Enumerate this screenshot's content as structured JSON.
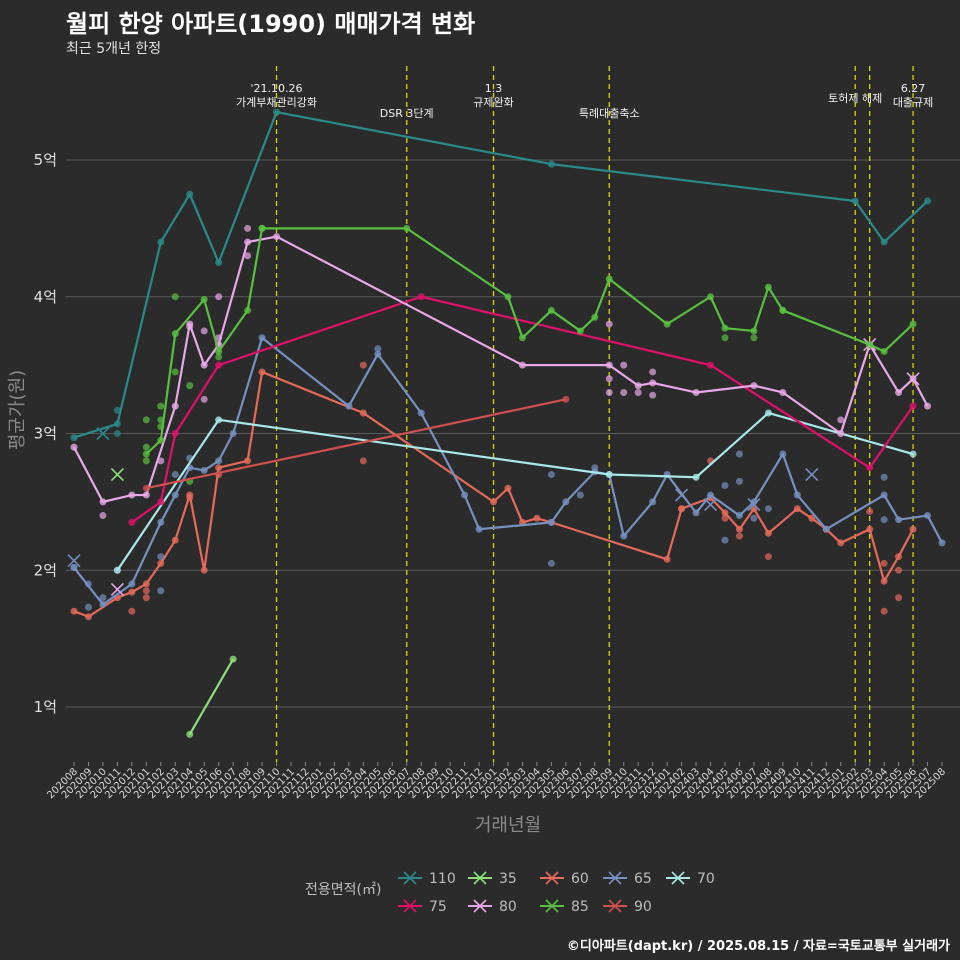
{
  "title": "월피 한양 아파트(1990) 매매가격 변화",
  "subtitle": "최근 5개년 한정",
  "caption": "©디아파트(dapt.kr) / 2025.08.15 / 자료=국토교통부 실거래가",
  "chart_data": {
    "type": "line",
    "xlabel": "거래년월",
    "ylabel": "평균가(원)",
    "ylim": [
      0.6,
      5.6
    ],
    "yticks": [
      {
        "v": 1,
        "label": "1억"
      },
      {
        "v": 2,
        "label": "2억"
      },
      {
        "v": 3,
        "label": "3억"
      },
      {
        "v": 4,
        "label": "4억"
      },
      {
        "v": 5,
        "label": "5억"
      }
    ],
    "categories": [
      "202008",
      "202009",
      "202010",
      "202011",
      "202012",
      "202101",
      "202102",
      "202103",
      "202104",
      "202105",
      "202106",
      "202107",
      "202108",
      "202109",
      "202110",
      "202111",
      "202112",
      "202201",
      "202202",
      "202203",
      "202204",
      "202205",
      "202206",
      "202207",
      "202208",
      "202209",
      "202210",
      "202211",
      "202212",
      "202301",
      "202302",
      "202303",
      "202304",
      "202305",
      "202306",
      "202307",
      "202308",
      "202309",
      "202310",
      "202311",
      "202312",
      "202401",
      "202402",
      "202403",
      "202404",
      "202405",
      "202406",
      "202407",
      "202408",
      "202409",
      "202410",
      "202411",
      "202412",
      "202501",
      "202502",
      "202503",
      "202504",
      "202505",
      "202506",
      "202507",
      "202508"
    ],
    "events": [
      {
        "month": "202110",
        "lines": [
          "'21.10.26",
          "가계부채관리강화"
        ]
      },
      {
        "month": "202207",
        "lines": [
          "DSR 3단계"
        ]
      },
      {
        "month": "202301",
        "lines": [
          "1.3",
          "규제완화"
        ]
      },
      {
        "month": "202309",
        "lines": [
          "특례대출축소"
        ]
      },
      {
        "month": "202502",
        "lines": [
          "토허제 해제"
        ]
      },
      {
        "month": "202503",
        "lines": [
          ""
        ]
      },
      {
        "month": "202506",
        "lines": [
          "6.27",
          "대출규제"
        ]
      }
    ],
    "legend_title": "전용면적(㎡)",
    "series": [
      {
        "name": "110",
        "color": "#2a8a8a",
        "points": [
          [
            "202008",
            2.97
          ],
          [
            "202011",
            3.07
          ],
          [
            "202102",
            4.4
          ],
          [
            "202104",
            4.75
          ],
          [
            "202106",
            4.25
          ],
          [
            "202110",
            5.35
          ],
          [
            "202305",
            4.97
          ],
          [
            "202502",
            4.7
          ],
          [
            "202504",
            4.4
          ],
          [
            "202507",
            4.7
          ]
        ],
        "dots": [
          [
            "202011",
            3.17
          ],
          [
            "202011",
            3.0
          ]
        ],
        "x_marks": [
          [
            "202010",
            3.0
          ]
        ]
      },
      {
        "name": "35",
        "color": "#8ee07a",
        "points": [
          [
            "202104",
            0.8
          ],
          [
            "202107",
            1.35
          ]
        ],
        "dots": [],
        "x_marks": [
          [
            "202011",
            2.7
          ]
        ]
      },
      {
        "name": "60",
        "color": "#e56a5a",
        "points": [
          [
            "202008",
            1.7
          ],
          [
            "202009",
            1.66
          ],
          [
            "202011",
            1.8
          ],
          [
            "202012",
            1.84
          ],
          [
            "202101",
            1.9
          ],
          [
            "202102",
            2.05
          ],
          [
            "202103",
            2.22
          ],
          [
            "202104",
            2.55
          ],
          [
            "202105",
            2.0
          ],
          [
            "202106",
            2.75
          ],
          [
            "202108",
            2.8
          ],
          [
            "202109",
            3.45
          ],
          [
            "202204",
            3.15
          ],
          [
            "202301",
            2.5
          ],
          [
            "202302",
            2.6
          ],
          [
            "202303",
            2.35
          ],
          [
            "202304",
            2.38
          ],
          [
            "202305",
            2.35
          ],
          [
            "202401",
            2.08
          ],
          [
            "202402",
            2.45
          ],
          [
            "202404",
            2.53
          ],
          [
            "202405",
            2.42
          ],
          [
            "202406",
            2.3
          ],
          [
            "202407",
            2.45
          ],
          [
            "202408",
            2.27
          ],
          [
            "202410",
            2.45
          ],
          [
            "202411",
            2.38
          ],
          [
            "202412",
            2.3
          ],
          [
            "202501",
            2.2
          ],
          [
            "202503",
            2.3
          ],
          [
            "202504",
            1.92
          ],
          [
            "202505",
            2.1
          ],
          [
            "202506",
            2.3
          ]
        ],
        "dots": [
          [
            "202012",
            1.7
          ],
          [
            "202101",
            1.8
          ],
          [
            "202101",
            1.85
          ],
          [
            "202104",
            2.53
          ],
          [
            "202106",
            2.7
          ],
          [
            "202204",
            3.5
          ],
          [
            "202204",
            2.8
          ],
          [
            "202402",
            2.45
          ],
          [
            "202404",
            2.8
          ],
          [
            "202405",
            2.38
          ],
          [
            "202406",
            2.25
          ],
          [
            "202408",
            2.1
          ],
          [
            "202503",
            2.43
          ],
          [
            "202504",
            1.7
          ],
          [
            "202504",
            2.05
          ],
          [
            "202505",
            1.8
          ],
          [
            "202505",
            2.0
          ]
        ],
        "x_marks": []
      },
      {
        "name": "65",
        "color": "#7690c0",
        "points": [
          [
            "202008",
            2.02
          ],
          [
            "202010",
            1.75
          ],
          [
            "202012",
            1.9
          ],
          [
            "202102",
            2.35
          ],
          [
            "202103",
            2.55
          ],
          [
            "202104",
            2.75
          ],
          [
            "202105",
            2.73
          ],
          [
            "202106",
            2.8
          ],
          [
            "202107",
            3.0
          ],
          [
            "202109",
            3.7
          ],
          [
            "202203",
            3.2
          ],
          [
            "202205",
            3.58
          ],
          [
            "202208",
            3.15
          ],
          [
            "202211",
            2.55
          ],
          [
            "202212",
            2.3
          ],
          [
            "202305",
            2.35
          ],
          [
            "202306",
            2.5
          ],
          [
            "202308",
            2.72
          ],
          [
            "202309",
            2.7
          ],
          [
            "202310",
            2.25
          ],
          [
            "202312",
            2.5
          ],
          [
            "202401",
            2.7
          ],
          [
            "202403",
            2.42
          ],
          [
            "202404",
            2.55
          ],
          [
            "202406",
            2.4
          ],
          [
            "202407",
            2.5
          ],
          [
            "202409",
            2.85
          ],
          [
            "202410",
            2.55
          ],
          [
            "202412",
            2.3
          ],
          [
            "202504",
            2.55
          ],
          [
            "202505",
            2.37
          ],
          [
            "202507",
            2.4
          ],
          [
            "202508",
            2.2
          ]
        ],
        "dots": [
          [
            "202008",
            2.02
          ],
          [
            "202009",
            1.73
          ],
          [
            "202009",
            1.9
          ],
          [
            "202010",
            1.8
          ],
          [
            "202011",
            2.0
          ],
          [
            "202102",
            1.85
          ],
          [
            "202102",
            2.1
          ],
          [
            "202103",
            2.7
          ],
          [
            "202104",
            2.82
          ],
          [
            "202205",
            3.62
          ],
          [
            "202305",
            2.05
          ],
          [
            "202305",
            2.7
          ],
          [
            "202307",
            2.55
          ],
          [
            "202308",
            2.75
          ],
          [
            "202405",
            2.22
          ],
          [
            "202405",
            2.62
          ],
          [
            "202406",
            2.65
          ],
          [
            "202406",
            2.85
          ],
          [
            "202407",
            2.38
          ],
          [
            "202408",
            2.45
          ],
          [
            "202504",
            2.68
          ],
          [
            "202504",
            2.37
          ]
        ],
        "x_marks": [
          [
            "202008",
            2.07
          ],
          [
            "202402",
            2.55
          ],
          [
            "202404",
            2.48
          ],
          [
            "202407",
            2.48
          ],
          [
            "202411",
            2.7
          ]
        ]
      },
      {
        "name": "70",
        "color": "#a8e8e8",
        "points": [
          [
            "202011",
            2.0
          ],
          [
            "202106",
            3.1
          ],
          [
            "202309",
            2.7
          ],
          [
            "202403",
            2.68
          ],
          [
            "202408",
            3.15
          ],
          [
            "202506",
            2.85
          ]
        ],
        "dots": [],
        "x_marks": []
      },
      {
        "name": "75",
        "color": "#e0106a",
        "points": [
          [
            "202012",
            2.35
          ],
          [
            "202102",
            2.5
          ],
          [
            "202103",
            3.0
          ],
          [
            "202106",
            3.5
          ],
          [
            "202208",
            4.0
          ],
          [
            "202404",
            3.5
          ],
          [
            "202503",
            2.75
          ],
          [
            "202506",
            3.2
          ]
        ],
        "dots": [],
        "x_marks": []
      },
      {
        "name": "80",
        "color": "#e8a8e8",
        "points": [
          [
            "202008",
            2.9
          ],
          [
            "202010",
            2.5
          ],
          [
            "202012",
            2.55
          ],
          [
            "202101",
            2.55
          ],
          [
            "202103",
            3.2
          ],
          [
            "202104",
            3.8
          ],
          [
            "202105",
            3.5
          ],
          [
            "202106",
            3.65
          ],
          [
            "202108",
            4.4
          ],
          [
            "202110",
            4.44
          ],
          [
            "202303",
            3.5
          ],
          [
            "202309",
            3.5
          ],
          [
            "202311",
            3.35
          ],
          [
            "202312",
            3.37
          ],
          [
            "202403",
            3.3
          ],
          [
            "202407",
            3.35
          ],
          [
            "202409",
            3.3
          ],
          [
            "202501",
            3.0
          ],
          [
            "202503",
            3.65
          ],
          [
            "202505",
            3.3
          ],
          [
            "202506",
            3.4
          ],
          [
            "202507",
            3.2
          ]
        ],
        "dots": [
          [
            "202010",
            2.4
          ],
          [
            "202102",
            2.8
          ],
          [
            "202104",
            3.78
          ],
          [
            "202105",
            3.25
          ],
          [
            "202105",
            3.75
          ],
          [
            "202106",
            3.7
          ],
          [
            "202106",
            4.0
          ],
          [
            "202108",
            4.5
          ],
          [
            "202108",
            4.3
          ],
          [
            "202309",
            3.8
          ],
          [
            "202309",
            3.3
          ],
          [
            "202309",
            3.4
          ],
          [
            "202310",
            3.5
          ],
          [
            "202310",
            3.3
          ],
          [
            "202311",
            3.3
          ],
          [
            "202312",
            3.28
          ],
          [
            "202312",
            3.45
          ],
          [
            "202501",
            3.1
          ]
        ],
        "x_marks": [
          [
            "202011",
            1.86
          ],
          [
            "202503",
            3.65
          ],
          [
            "202506",
            3.4
          ]
        ]
      },
      {
        "name": "85",
        "color": "#58c040",
        "points": [
          [
            "202101",
            2.85
          ],
          [
            "202102",
            2.95
          ],
          [
            "202103",
            3.73
          ],
          [
            "202105",
            3.98
          ],
          [
            "202106",
            3.6
          ],
          [
            "202108",
            3.9
          ],
          [
            "202109",
            4.5
          ],
          [
            "202207",
            4.5
          ],
          [
            "202302",
            4.0
          ],
          [
            "202303",
            3.7
          ],
          [
            "202305",
            3.9
          ],
          [
            "202307",
            3.75
          ],
          [
            "202308",
            3.85
          ],
          [
            "202309",
            4.13
          ],
          [
            "202401",
            3.8
          ],
          [
            "202404",
            4.0
          ],
          [
            "202405",
            3.77
          ],
          [
            "202407",
            3.75
          ],
          [
            "202408",
            4.07
          ],
          [
            "202409",
            3.9
          ],
          [
            "202503",
            3.65
          ],
          [
            "202504",
            3.6
          ],
          [
            "202506",
            3.8
          ]
        ],
        "dots": [
          [
            "202101",
            2.8
          ],
          [
            "202101",
            2.9
          ],
          [
            "202101",
            3.1
          ],
          [
            "202102",
            3.2
          ],
          [
            "202102",
            3.1
          ],
          [
            "202102",
            3.05
          ],
          [
            "202103",
            4.0
          ],
          [
            "202103",
            3.45
          ],
          [
            "202104",
            3.35
          ],
          [
            "202104",
            2.65
          ],
          [
            "202106",
            3.56
          ],
          [
            "202109",
            4.5
          ],
          [
            "202405",
            3.7
          ],
          [
            "202407",
            3.7
          ],
          [
            "202409",
            3.9
          ]
        ],
        "x_marks": []
      },
      {
        "name": "90",
        "color": "#d05050",
        "points": [
          [
            "202101",
            2.6
          ],
          [
            "202306",
            3.25
          ]
        ],
        "dots": [],
        "x_marks": []
      }
    ]
  }
}
